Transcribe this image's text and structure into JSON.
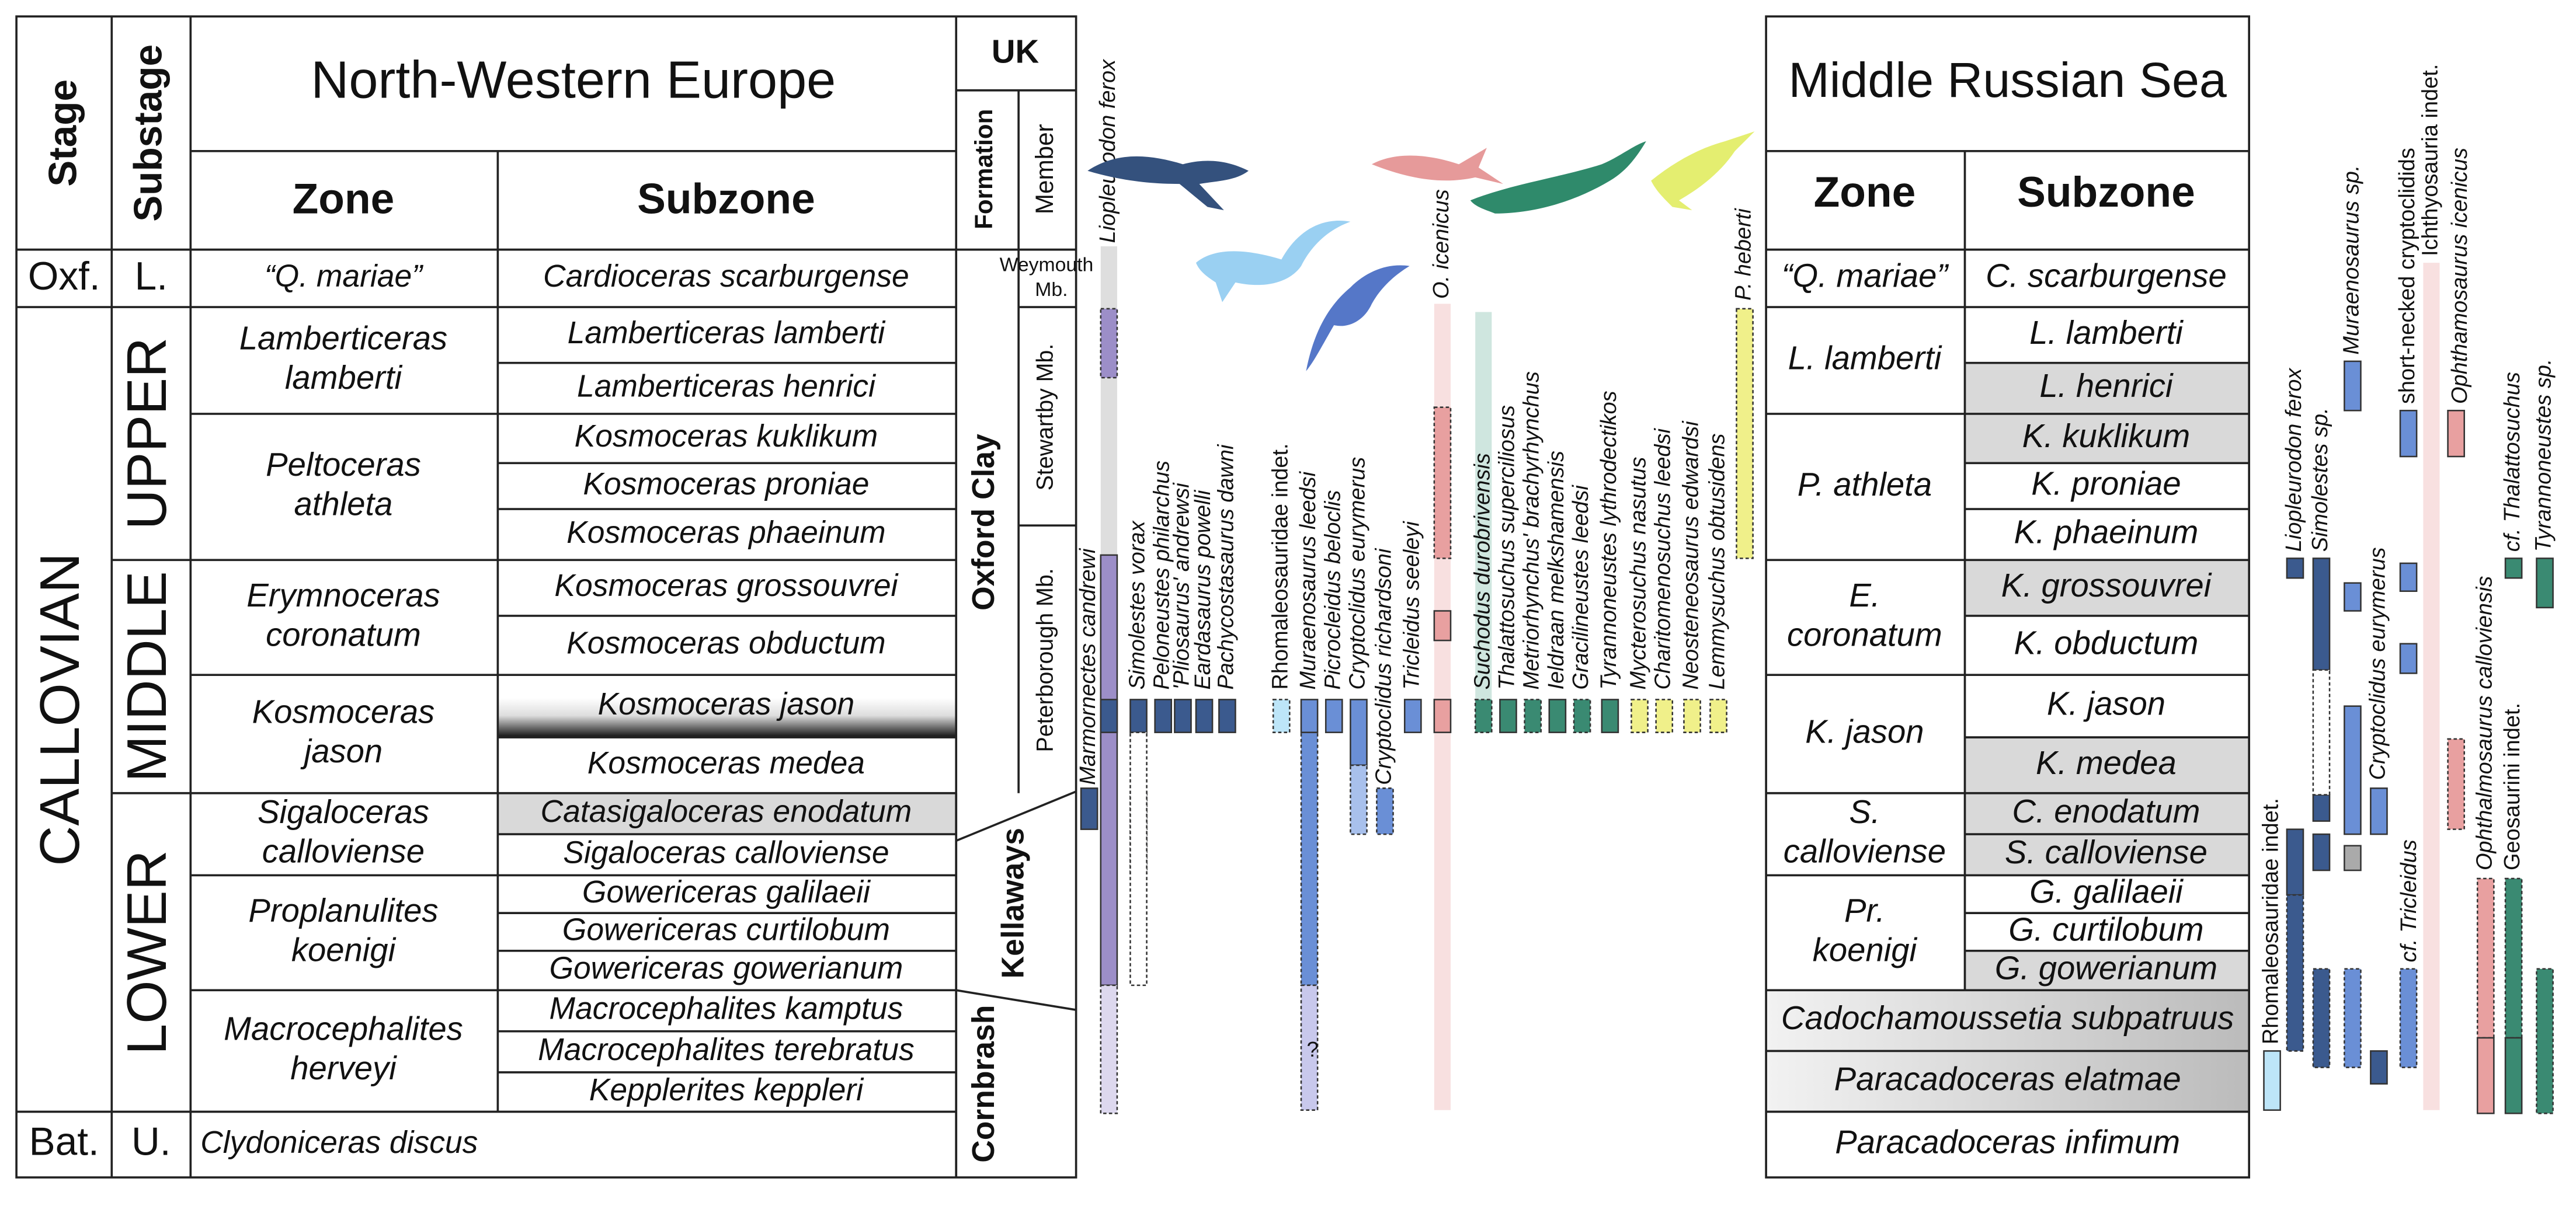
{
  "left_table": {
    "title": "North-Western Europe",
    "headers": {
      "stage": "Stage",
      "substage": "Substage",
      "zone": "Zone",
      "subzone": "Subzone",
      "uk": "UK",
      "formation": "Formation",
      "member": "Member"
    },
    "stages": [
      "Oxf.",
      "CALLOVIAN",
      "Bat."
    ],
    "substages": [
      "L.",
      "UPPER",
      "MIDDLE",
      "LOWER",
      "U."
    ],
    "zones": [
      [
        "“Q. mariae”"
      ],
      [
        "Lamberticeras",
        "lamberti"
      ],
      [
        "Peltoceras",
        "athleta"
      ],
      [
        "Erymnoceras",
        "coronatum"
      ],
      [
        "Kosmoceras",
        "jason"
      ],
      [
        "Sigaloceras",
        "calloviense"
      ],
      [
        "Proplanulites",
        "koenigi"
      ],
      [
        "Macrocephalites",
        "herveyi"
      ]
    ],
    "subzones": [
      "Cardioceras scarburgense",
      "Lamberticeras lamberti",
      "Lamberticeras henrici",
      "Kosmoceras kuklikum",
      "Kosmoceras proniae",
      "Kosmoceras phaeinum",
      "Kosmoceras grossouvrei",
      "Kosmoceras obductum",
      "Kosmoceras jason",
      "Kosmoceras medea",
      "Catasigaloceras enodatum",
      "Sigaloceras calloviense",
      "Gowericeras galilaeii",
      "Gowericeras curtilobum",
      "Gowericeras gowerianum",
      "Macrocephalites kamptus",
      "Macrocephalites terebratus",
      "Kepplerites keppleri"
    ],
    "bathonian_zone": "Clydoniceras discus",
    "members": [
      "Weymouth",
      "Mb.",
      "Stewartby Mb.",
      "Peterborough Mb."
    ],
    "formations": [
      "Oxford Clay",
      "Kellaways",
      "Cornbrash"
    ]
  },
  "right_table": {
    "title": "Middle Russian Sea",
    "headers": {
      "zone": "Zone",
      "subzone": "Subzone"
    },
    "zones": [
      [
        "“Q. mariae”"
      ],
      [
        "L. lamberti"
      ],
      [
        "P. athleta"
      ],
      [
        "E.",
        "coronatum"
      ],
      [
        "K. jason"
      ],
      [
        "S.",
        "calloviense"
      ],
      [
        "Pr.",
        "koenigi"
      ]
    ],
    "subzones": [
      "C. scarburgense",
      "L. lamberti",
      "L. henrici",
      "K. kuklikum",
      "K. proniae",
      "K. phaeinum",
      "K. grossouvrei",
      "K. obductum",
      "K. jason",
      "K. medea",
      "C. enodatum",
      "S. calloviense",
      "G. galilaeii",
      "G. curtilobum",
      "G. gowerianum"
    ],
    "lower_zones": [
      "Cadochamoussetia subpatruus",
      "Paracadoceras elatmae",
      "Paracadoceras infimum"
    ]
  },
  "taxa_nw_europe": [
    "Liopleurodon ferox",
    "Marmornectes candrewi",
    "Simolestes vorax",
    "Peloneustes philarchus",
    "'Pliosaurus' andrewsi",
    "Eardasaurus powelli",
    "Pachycostasaurus dawni",
    "Rhomaleosauridae indet.",
    "Muraenosaurus leedsi",
    "Picrocleidus beloclis",
    "Cryptoclidus eurymerus",
    "Cryptoclidus richardsoni",
    "Tricleidus seeleyi",
    "O. icenicus",
    "Suchodus durobrivensis",
    "Thalattosuchus superciliosus",
    "Metriorhynchus' brachyrhynchus",
    "Ieldraan melkshamensis",
    "Gracilineustes leedsi",
    "Tyrannoneustes lythrodectikos",
    "Mycterosuchus nasutus",
    "Charitomenosuchus leedsi",
    "Neosteneosaurus edwardsi",
    "Lemmysuchus obtusidens",
    "P. heberti"
  ],
  "taxa_russia": [
    "Rhomaleosauridae indet.",
    "Liopleurodon ferox",
    "Simolestes sp.",
    "Muraenosaurus sp.",
    "Cryptoclidus eurymerus",
    "short-necked cryptoclidids",
    "cf. Tricleidus",
    "Ichthyosauria indet.",
    "Ophthamosaurus icenicus",
    "Ophthalmosaurus calloviensis",
    "cf. Thalattosuchus",
    "Geosaurini indet.",
    "Tyrannoneustes sp."
  ],
  "query": "?"
}
